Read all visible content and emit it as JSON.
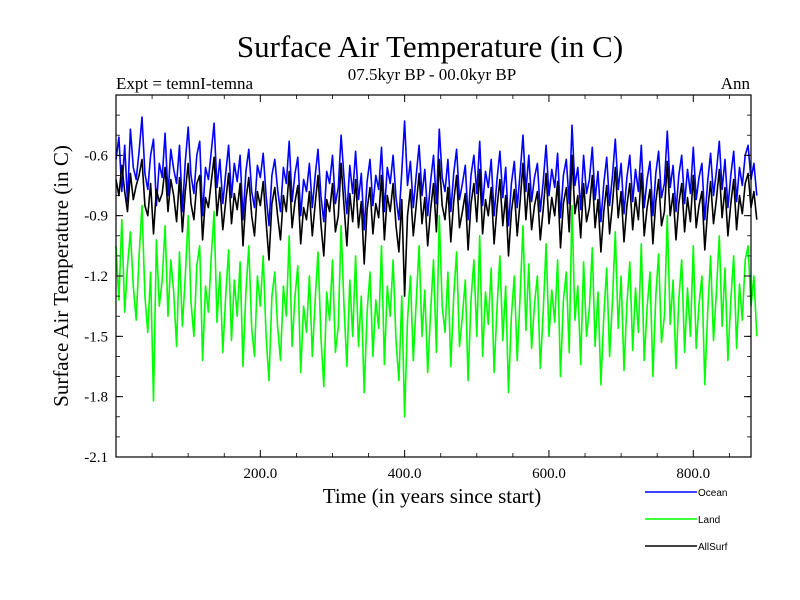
{
  "chart_data": {
    "type": "line",
    "title": "Surface Air Temperature (in C)",
    "subtitle_left": "Expt = temnI-temna",
    "subtitle_center": "07.5kyr BP - 00.0kyr BP",
    "subtitle_right": "Ann",
    "xlabel": "Time (in years since start)",
    "ylabel": "Surface Air Temperature (in C)",
    "xlim": [
      0,
      880
    ],
    "ylim": [
      -2.1,
      -0.3
    ],
    "xticks": [
      200,
      400,
      600,
      800
    ],
    "xtick_labels": [
      "200.0",
      "400.0",
      "600.0",
      "800.0"
    ],
    "yticks": [
      -2.1,
      -1.8,
      -1.5,
      -1.2,
      -0.9,
      -0.6
    ],
    "ytick_labels": [
      "-2.1",
      "-1.8",
      "-1.5",
      "-1.2",
      "-0.9",
      "-0.6"
    ],
    "x_step": 4,
    "series": [
      {
        "name": "Ocean",
        "color": "#0000ff",
        "values": [
          -0.62,
          -0.51,
          -0.78,
          -0.55,
          -0.83,
          -0.47,
          -0.66,
          -0.72,
          -0.58,
          -0.41,
          -0.69,
          -0.77,
          -0.6,
          -0.52,
          -0.85,
          -0.64,
          -0.71,
          -0.49,
          -0.8,
          -0.57,
          -0.67,
          -0.74,
          -0.55,
          -0.88,
          -0.63,
          -0.46,
          -0.7,
          -0.79,
          -0.6,
          -0.53,
          -0.9,
          -0.66,
          -0.72,
          -0.58,
          -0.44,
          -0.76,
          -0.62,
          -0.84,
          -0.69,
          -0.55,
          -0.81,
          -0.64,
          -0.73,
          -0.6,
          -0.92,
          -0.68,
          -0.57,
          -0.78,
          -0.86,
          -0.65,
          -0.71,
          -0.59,
          -0.8,
          -0.95,
          -0.7,
          -0.62,
          -0.77,
          -0.88,
          -0.66,
          -0.74,
          -0.53,
          -0.83,
          -0.69,
          -0.61,
          -0.9,
          -0.72,
          -0.78,
          -0.64,
          -0.86,
          -0.7,
          -0.57,
          -0.8,
          -0.93,
          -0.68,
          -0.74,
          -0.6,
          -0.84,
          -0.76,
          -0.5,
          -0.71,
          -0.89,
          -0.65,
          -0.79,
          -0.58,
          -0.82,
          -0.69,
          -0.97,
          -0.73,
          -0.62,
          -0.85,
          -0.7,
          -0.77,
          -0.56,
          -0.88,
          -0.66,
          -0.74,
          -0.6,
          -0.81,
          -0.92,
          -0.68,
          -0.43,
          -0.75,
          -0.63,
          -0.86,
          -0.7,
          -0.55,
          -0.8,
          -0.67,
          -0.9,
          -0.73,
          -0.6,
          -0.84,
          -0.47,
          -0.71,
          -0.78,
          -0.62,
          -0.88,
          -0.69,
          -0.57,
          -0.82,
          -0.74,
          -0.65,
          -0.92,
          -0.7,
          -0.6,
          -0.79,
          -0.53,
          -0.85,
          -0.68,
          -0.76,
          -0.62,
          -0.9,
          -0.72,
          -0.58,
          -0.81,
          -0.66,
          -0.95,
          -0.74,
          -0.63,
          -0.86,
          -0.69,
          -0.5,
          -0.78,
          -0.6,
          -0.83,
          -0.71,
          -0.64,
          -0.88,
          -0.73,
          -0.55,
          -0.8,
          -0.67,
          -0.76,
          -0.59,
          -0.91,
          -0.7,
          -0.62,
          -0.84,
          -0.45,
          -0.75,
          -0.66,
          -0.87,
          -0.6,
          -0.79,
          -0.72,
          -0.56,
          -0.82,
          -0.68,
          -0.93,
          -0.74,
          -0.61,
          -0.85,
          -0.7,
          -0.52,
          -0.77,
          -0.64,
          -0.89,
          -0.71,
          -0.6,
          -0.83,
          -0.67,
          -0.78,
          -0.55,
          -0.86,
          -0.72,
          -0.63,
          -0.9,
          -0.69,
          -0.58,
          -0.81,
          -0.74,
          -0.48,
          -0.76,
          -0.65,
          -0.88,
          -0.7,
          -0.6,
          -0.84,
          -0.67,
          -0.79,
          -0.56,
          -0.82,
          -0.71,
          -0.64,
          -0.92,
          -0.73,
          -0.59,
          -0.8,
          -0.68,
          -0.53,
          -0.77,
          -0.62,
          -0.86,
          -0.7,
          -0.58,
          -0.83,
          -0.66,
          -0.75,
          -0.6,
          -0.55,
          -0.72,
          -0.64,
          -0.8
        ]
      },
      {
        "name": "Land",
        "color": "#00ff00",
        "values": [
          -1.05,
          -1.32,
          -0.92,
          -1.38,
          -1.15,
          -0.98,
          -1.25,
          -1.42,
          -1.1,
          -0.85,
          -1.3,
          -1.48,
          -1.18,
          -1.82,
          -1.02,
          -1.35,
          -1.22,
          -0.95,
          -1.4,
          -1.12,
          -1.28,
          -1.55,
          -1.08,
          -1.45,
          -1.2,
          -0.9,
          -1.33,
          -1.5,
          -1.15,
          -1.05,
          -1.62,
          -1.25,
          -1.38,
          -1.1,
          -0.88,
          -1.43,
          -1.18,
          -1.58,
          -1.3,
          -1.07,
          -1.52,
          -1.22,
          -1.4,
          -1.13,
          -1.65,
          -1.28,
          -1.05,
          -1.46,
          -1.6,
          -1.2,
          -1.35,
          -1.1,
          -1.5,
          -1.72,
          -1.3,
          -1.18,
          -1.45,
          -1.62,
          -1.25,
          -1.4,
          -1.0,
          -1.55,
          -1.3,
          -1.15,
          -1.68,
          -1.35,
          -1.48,
          -1.2,
          -1.6,
          -1.32,
          -1.08,
          -1.5,
          -1.75,
          -1.28,
          -1.42,
          -1.12,
          -1.58,
          -1.45,
          -0.95,
          -1.35,
          -1.65,
          -1.22,
          -1.5,
          -1.1,
          -1.55,
          -1.3,
          -1.78,
          -1.38,
          -1.18,
          -1.6,
          -1.32,
          -1.46,
          -1.05,
          -1.64,
          -1.25,
          -1.4,
          -1.12,
          -1.52,
          -1.72,
          -1.3,
          -1.9,
          -1.42,
          -1.2,
          -1.62,
          -1.33,
          -1.05,
          -1.5,
          -1.27,
          -1.68,
          -1.38,
          -1.12,
          -1.58,
          -0.9,
          -1.35,
          -1.48,
          -1.18,
          -1.65,
          -1.3,
          -1.08,
          -1.55,
          -1.4,
          -1.22,
          -1.72,
          -1.32,
          -1.12,
          -1.5,
          -1.0,
          -1.6,
          -1.28,
          -1.44,
          -1.16,
          -1.68,
          -1.36,
          -1.1,
          -1.52,
          -1.25,
          -1.78,
          -1.4,
          -1.2,
          -1.62,
          -1.3,
          -0.95,
          -1.47,
          -1.14,
          -1.56,
          -1.34,
          -1.2,
          -1.66,
          -1.38,
          -1.04,
          -1.5,
          -1.27,
          -1.43,
          -1.12,
          -1.7,
          -1.32,
          -1.18,
          -1.58,
          -0.85,
          -1.42,
          -1.25,
          -1.64,
          -1.13,
          -1.5,
          -1.36,
          -1.06,
          -1.55,
          -1.28,
          -1.74,
          -1.4,
          -1.16,
          -1.6,
          -1.32,
          -0.98,
          -1.46,
          -1.2,
          -1.67,
          -1.34,
          -1.13,
          -1.57,
          -1.26,
          -1.48,
          -1.04,
          -1.62,
          -1.36,
          -1.18,
          -1.7,
          -1.3,
          -1.09,
          -1.53,
          -1.4,
          -0.9,
          -1.44,
          -1.22,
          -1.66,
          -1.32,
          -1.12,
          -1.58,
          -1.26,
          -1.5,
          -1.05,
          -1.56,
          -1.34,
          -1.2,
          -1.74,
          -1.38,
          -1.1,
          -1.52,
          -1.28,
          -1.0,
          -1.45,
          -1.16,
          -1.62,
          -1.32,
          -1.1,
          -1.56,
          -1.24,
          -1.42,
          -1.12,
          -1.05,
          -1.35,
          -1.2,
          -1.5
        ]
      },
      {
        "name": "AllSurf",
        "color": "#000000",
        "values": [
          -0.72,
          -0.8,
          -0.65,
          -0.78,
          -0.88,
          -0.69,
          -0.82,
          -0.75,
          -0.7,
          -0.62,
          -0.85,
          -0.9,
          -0.74,
          -0.99,
          -0.77,
          -0.83,
          -0.79,
          -0.66,
          -0.88,
          -0.72,
          -0.8,
          -0.93,
          -0.71,
          -0.98,
          -0.78,
          -0.64,
          -0.84,
          -0.92,
          -0.74,
          -0.7,
          -1.02,
          -0.81,
          -0.86,
          -0.73,
          -0.61,
          -0.9,
          -0.76,
          -0.97,
          -0.83,
          -0.69,
          -0.94,
          -0.79,
          -0.87,
          -0.74,
          -1.05,
          -0.82,
          -0.71,
          -0.9,
          -1.0,
          -0.78,
          -0.85,
          -0.73,
          -0.93,
          -1.12,
          -0.84,
          -0.76,
          -0.9,
          -1.02,
          -0.8,
          -0.88,
          -0.68,
          -0.96,
          -0.83,
          -0.75,
          -1.04,
          -0.86,
          -0.92,
          -0.78,
          -1.0,
          -0.84,
          -0.7,
          -0.94,
          -1.1,
          -0.82,
          -0.88,
          -0.74,
          -0.98,
          -0.9,
          -0.64,
          -0.85,
          -1.05,
          -0.79,
          -0.93,
          -0.72,
          -0.96,
          -0.83,
          -1.14,
          -0.87,
          -0.76,
          -0.99,
          -0.84,
          -0.91,
          -0.7,
          -1.02,
          -0.8,
          -0.88,
          -0.74,
          -0.95,
          -1.08,
          -0.82,
          -1.3,
          -0.9,
          -0.77,
          -1.0,
          -0.85,
          -0.69,
          -0.94,
          -0.81,
          -1.05,
          -0.87,
          -0.74,
          -0.98,
          -0.62,
          -0.85,
          -0.92,
          -0.76,
          -1.03,
          -0.83,
          -0.7,
          -0.96,
          -0.88,
          -0.79,
          -1.07,
          -0.84,
          -0.74,
          -0.93,
          -0.67,
          -0.99,
          -0.82,
          -0.9,
          -0.76,
          -1.04,
          -0.86,
          -0.72,
          -0.95,
          -0.8,
          -1.1,
          -0.88,
          -0.77,
          -1.0,
          -0.83,
          -0.64,
          -0.92,
          -0.74,
          -0.97,
          -0.85,
          -0.78,
          -1.02,
          -0.87,
          -0.69,
          -0.94,
          -0.81,
          -0.9,
          -0.73,
          -1.06,
          -0.84,
          -0.76,
          -0.98,
          -0.6,
          -0.89,
          -0.8,
          -1.01,
          -0.74,
          -0.93,
          -0.86,
          -0.7,
          -0.96,
          -0.82,
          -1.08,
          -0.88,
          -0.75,
          -0.99,
          -0.84,
          -0.66,
          -0.91,
          -0.78,
          -1.03,
          -0.85,
          -0.74,
          -0.97,
          -0.81,
          -0.92,
          -0.69,
          -1.0,
          -0.86,
          -0.77,
          -1.04,
          -0.83,
          -0.72,
          -0.95,
          -0.88,
          -0.63,
          -0.9,
          -0.79,
          -1.02,
          -0.84,
          -0.74,
          -0.98,
          -0.81,
          -0.93,
          -0.7,
          -0.96,
          -0.85,
          -0.78,
          -1.07,
          -0.87,
          -0.73,
          -0.94,
          -0.82,
          -0.67,
          -0.91,
          -0.76,
          -1.0,
          -0.84,
          -0.72,
          -0.97,
          -0.8,
          -0.89,
          -0.74,
          -0.69,
          -0.86,
          -0.78,
          -0.92
        ]
      }
    ]
  }
}
